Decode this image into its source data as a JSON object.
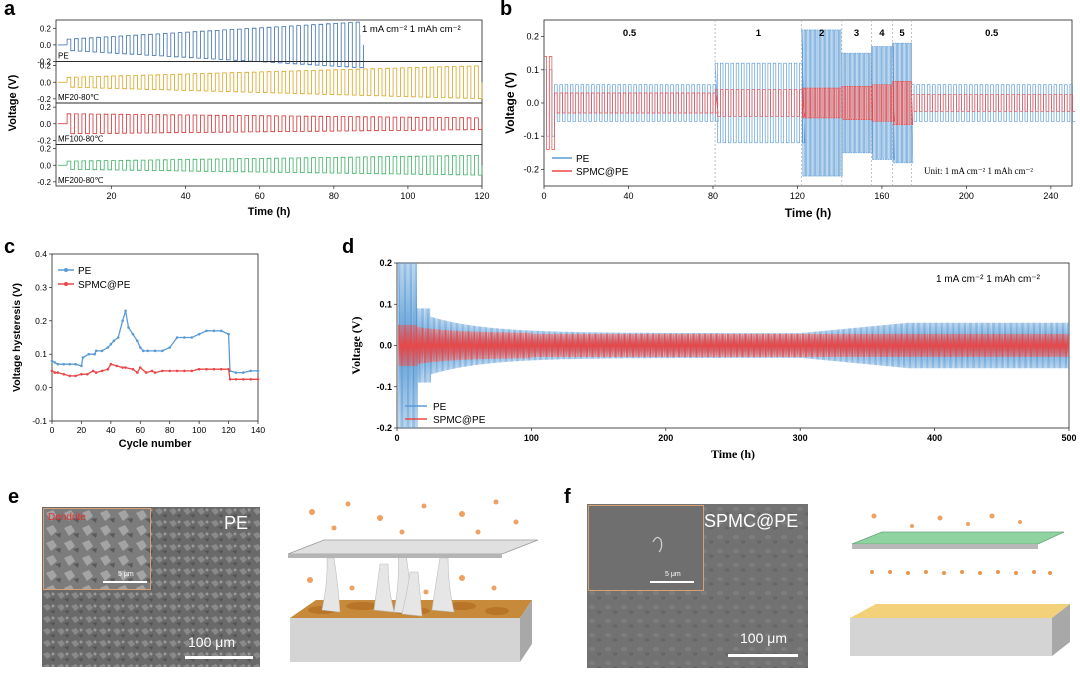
{
  "figure": {
    "panels": {
      "a": {
        "letter": "a"
      },
      "b": {
        "letter": "b"
      },
      "c": {
        "letter": "c"
      },
      "d": {
        "letter": "d"
      },
      "e": {
        "letter": "e",
        "sem_label": "PE",
        "inset_label": "Dendrite",
        "scale_label": "100 μm",
        "inset_scale_label": "5 μm"
      },
      "f": {
        "letter": "f",
        "sem_label": "SPMC@PE",
        "scale_label": "100 μm",
        "inset_scale_label": "5 μm"
      }
    }
  },
  "chart_data": [
    {
      "panel": "a",
      "type": "line",
      "xlabel": "Time (h)",
      "ylabel": "Voltage (V)",
      "xlim": [
        5,
        120
      ],
      "xticks": [
        20,
        40,
        60,
        80,
        100,
        120
      ],
      "annotation": "1 mA cm⁻² 1 mAh cm⁻²",
      "subplots": [
        {
          "name": "PE",
          "color": "#3a6fb0",
          "ylim": [
            -0.2,
            0.3
          ],
          "yticks": [
            -0.2,
            0,
            0.2
          ],
          "tick_labels": [
            "0.2",
            "0.0",
            "-0.2"
          ],
          "x_end": 88,
          "amp_start": 0.07,
          "amp_end": 0.28
        },
        {
          "name": "MF20-80℃",
          "color": "#d9a520",
          "ylim": [
            -0.25,
            0.25
          ],
          "yticks": [
            -0.2,
            0,
            0.2
          ],
          "tick_labels": [
            "0.2",
            "0.0",
            "-0.2"
          ],
          "x_end": 120,
          "amp_start": 0.06,
          "amp_end": 0.2
        },
        {
          "name": "MF100-80℃",
          "color": "#d43030",
          "ylim": [
            -0.25,
            0.25
          ],
          "yticks": [
            -0.2,
            0,
            0.2
          ],
          "tick_labels": [
            "0.2",
            "0.0",
            "-0.2"
          ],
          "x_end": 120,
          "amp_start": 0.12,
          "amp_end": 0.07
        },
        {
          "name": "MF200-80℃",
          "color": "#3cb062",
          "ylim": [
            -0.25,
            0.25
          ],
          "yticks": [
            -0.2,
            0,
            0.2
          ],
          "tick_labels": [
            "0.2",
            "0.0",
            "-0.2"
          ],
          "x_end": 120,
          "amp_start": 0.05,
          "amp_end": 0.12
        }
      ]
    },
    {
      "panel": "b",
      "type": "line",
      "xlabel": "Time (h)",
      "ylabel": "Voltage (V)",
      "xlim": [
        0,
        250
      ],
      "ylim": [
        -0.25,
        0.25
      ],
      "xticks": [
        0,
        40,
        80,
        120,
        160,
        200,
        240
      ],
      "yticks": [
        -0.2,
        -0.1,
        0.0,
        0.1,
        0.2
      ],
      "tick_labels_y": [
        "-0.2",
        "-0.1",
        "0.0",
        "0.1",
        "0.2"
      ],
      "rate_segments": [
        {
          "label": "0.5",
          "x_start": 0,
          "x_end": 81,
          "pe_amp": 0.055,
          "spmc_amp": 0.03
        },
        {
          "label": "1",
          "x_start": 81,
          "x_end": 122,
          "pe_amp": 0.12,
          "spmc_amp": 0.04
        },
        {
          "label": "2",
          "x_start": 122,
          "x_end": 141,
          "pe_amp": 0.22,
          "spmc_amp": 0.045
        },
        {
          "label": "3",
          "x_start": 141,
          "x_end": 155,
          "pe_amp": 0.15,
          "spmc_amp": 0.05
        },
        {
          "label": "4",
          "x_start": 155,
          "x_end": 165,
          "pe_amp": 0.17,
          "spmc_amp": 0.055
        },
        {
          "label": "5",
          "x_start": 165,
          "x_end": 174,
          "pe_amp": 0.18,
          "spmc_amp": 0.065
        },
        {
          "label": "0.5",
          "x_start": 174,
          "x_end": 250,
          "pe_amp": 0.055,
          "spmc_amp": 0.025
        }
      ],
      "series": [
        {
          "name": "PE",
          "color": "#5b9bd5"
        },
        {
          "name": "SPMC@PE",
          "color": "#e84848"
        }
      ],
      "annotation": "Unit: 1 mA cm⁻² 1 mAh cm⁻²",
      "legend": "bottom-left"
    },
    {
      "panel": "c",
      "type": "line",
      "xlabel": "Cycle number",
      "ylabel": "Voltage hysteresis (V)",
      "xlim": [
        0,
        140
      ],
      "ylim": [
        -0.1,
        0.4
      ],
      "xticks": [
        0,
        20,
        40,
        60,
        80,
        100,
        120,
        140
      ],
      "yticks": [
        -0.1,
        0.0,
        0.1,
        0.2,
        0.3,
        0.4
      ],
      "tick_labels_y": [
        "-0.1",
        "0.0",
        "0.1",
        "0.2",
        "0.3",
        "0.4"
      ],
      "legend": "top-left",
      "series": [
        {
          "name": "PE",
          "color": "#5b9bd5",
          "x": [
            0,
            2,
            4,
            8,
            12,
            16,
            20,
            21,
            25,
            29,
            30,
            34,
            38,
            40,
            42,
            45,
            48,
            50,
            52,
            55,
            58,
            60,
            62,
            65,
            70,
            75,
            80,
            85,
            90,
            95,
            100,
            105,
            110,
            115,
            120,
            121,
            125,
            130,
            135,
            140
          ],
          "values": [
            0.08,
            0.075,
            0.07,
            0.07,
            0.07,
            0.07,
            0.065,
            0.09,
            0.1,
            0.1,
            0.11,
            0.11,
            0.12,
            0.13,
            0.14,
            0.15,
            0.2,
            0.23,
            0.18,
            0.16,
            0.14,
            0.12,
            0.11,
            0.11,
            0.11,
            0.11,
            0.12,
            0.15,
            0.15,
            0.15,
            0.16,
            0.17,
            0.17,
            0.17,
            0.16,
            0.05,
            0.045,
            0.045,
            0.05,
            0.05
          ]
        },
        {
          "name": "SPMC@PE",
          "color": "#e84848",
          "x": [
            0,
            2,
            4,
            8,
            12,
            16,
            20,
            24,
            28,
            30,
            34,
            38,
            40,
            44,
            48,
            50,
            55,
            58,
            60,
            64,
            68,
            70,
            75,
            80,
            85,
            90,
            95,
            100,
            105,
            110,
            115,
            120,
            121,
            125,
            130,
            135,
            140
          ],
          "values": [
            0.05,
            0.045,
            0.045,
            0.04,
            0.035,
            0.035,
            0.04,
            0.04,
            0.05,
            0.045,
            0.05,
            0.055,
            0.07,
            0.065,
            0.06,
            0.06,
            0.055,
            0.045,
            0.06,
            0.045,
            0.05,
            0.045,
            0.05,
            0.05,
            0.05,
            0.05,
            0.05,
            0.055,
            0.055,
            0.055,
            0.055,
            0.055,
            0.025,
            0.025,
            0.025,
            0.025,
            0.025
          ]
        }
      ]
    },
    {
      "panel": "d",
      "type": "line",
      "xlabel": "Time (h)",
      "ylabel": "Voltage (V)",
      "xlim": [
        0,
        500
      ],
      "ylim": [
        -0.2,
        0.2
      ],
      "xticks": [
        0,
        100,
        200,
        300,
        400,
        500
      ],
      "yticks": [
        -0.2,
        -0.1,
        0.0,
        0.1,
        0.2
      ],
      "tick_labels_y": [
        "-0.2",
        "-0.1",
        "0.0",
        "0.1",
        "0.2"
      ],
      "annotation": "1 mA cm⁻² 1 mAh cm⁻²",
      "legend": "bottom-left",
      "series": [
        {
          "name": "PE",
          "color": "#5b9bd5"
        },
        {
          "name": "SPMC@PE",
          "color": "#e84848"
        }
      ]
    }
  ]
}
